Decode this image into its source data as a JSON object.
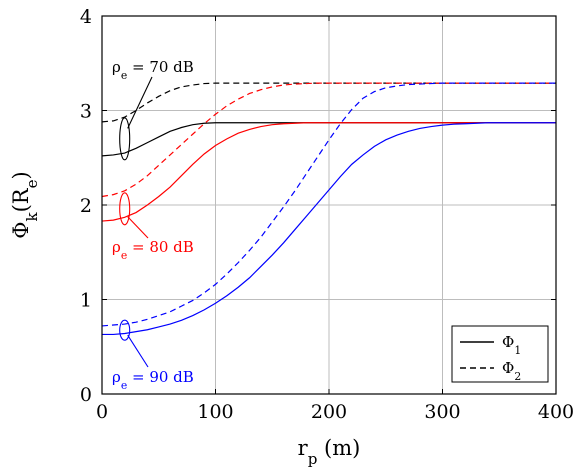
{
  "chart_data": {
    "type": "line",
    "xlabel": "r_p (m)",
    "ylabel": "Φ_k(R_e)",
    "xlim": [
      0,
      400
    ],
    "ylim": [
      0,
      4
    ],
    "xticks": [
      0,
      100,
      200,
      300,
      400
    ],
    "yticks": [
      0,
      1,
      2,
      3,
      4
    ],
    "grid": true,
    "legend_position": "bottom-right",
    "legend": [
      {
        "label": "Φ_1",
        "style": "solid"
      },
      {
        "label": "Φ_2",
        "style": "dashed"
      }
    ],
    "annotations": [
      {
        "text": "ρ_e = 70 dB",
        "color": "#000000"
      },
      {
        "text": "ρ_e = 80 dB",
        "color": "#ff0000"
      },
      {
        "text": "ρ_e = 90 dB",
        "color": "#0000ff"
      }
    ],
    "x": [
      0,
      10,
      20,
      30,
      40,
      50,
      60,
      70,
      80,
      90,
      100,
      110,
      120,
      130,
      140,
      150,
      160,
      170,
      180,
      190,
      200,
      210,
      220,
      230,
      240,
      250,
      260,
      270,
      280,
      290,
      300,
      310,
      320,
      330,
      340,
      350,
      360,
      370,
      380,
      390,
      400
    ],
    "series": [
      {
        "group": "70 dB",
        "kind": "Φ_1",
        "color": "#000000",
        "dash": false,
        "values": [
          2.52,
          2.53,
          2.55,
          2.6,
          2.66,
          2.72,
          2.78,
          2.82,
          2.85,
          2.865,
          2.87,
          2.87,
          2.87,
          2.87,
          2.87,
          2.87,
          2.87,
          2.87,
          2.87,
          2.87,
          2.87,
          2.87,
          2.87,
          2.87,
          2.87,
          2.87,
          2.87,
          2.87,
          2.87,
          2.87,
          2.87,
          2.87,
          2.87,
          2.87,
          2.87,
          2.87,
          2.87,
          2.87,
          2.87,
          2.87,
          2.87
        ]
      },
      {
        "group": "70 dB",
        "kind": "Φ_2",
        "color": "#000000",
        "dash": true,
        "values": [
          2.88,
          2.89,
          2.93,
          3.0,
          3.08,
          3.15,
          3.21,
          3.25,
          3.27,
          3.285,
          3.29,
          3.29,
          3.29,
          3.29,
          3.29,
          3.29,
          3.29,
          3.29,
          3.29,
          3.29,
          3.29,
          3.29,
          3.29,
          3.29,
          3.29,
          3.29,
          3.29,
          3.29,
          3.29,
          3.29,
          3.29,
          3.29,
          3.29,
          3.29,
          3.29,
          3.29,
          3.29,
          3.29,
          3.29,
          3.29,
          3.29
        ]
      },
      {
        "group": "80 dB",
        "kind": "Φ_1",
        "color": "#ff0000",
        "dash": false,
        "values": [
          1.83,
          1.84,
          1.87,
          1.92,
          2.0,
          2.09,
          2.19,
          2.31,
          2.43,
          2.54,
          2.63,
          2.7,
          2.76,
          2.8,
          2.83,
          2.85,
          2.86,
          2.865,
          2.87,
          2.87,
          2.87,
          2.87,
          2.87,
          2.87,
          2.87,
          2.87,
          2.87,
          2.87,
          2.87,
          2.87,
          2.87,
          2.87,
          2.87,
          2.87,
          2.87,
          2.87,
          2.87,
          2.87,
          2.87,
          2.87,
          2.87
        ]
      },
      {
        "group": "80 dB",
        "kind": "Φ_2",
        "color": "#ff0000",
        "dash": true,
        "values": [
          2.09,
          2.11,
          2.15,
          2.22,
          2.31,
          2.42,
          2.53,
          2.64,
          2.75,
          2.86,
          2.96,
          3.05,
          3.12,
          3.18,
          3.22,
          3.25,
          3.27,
          3.28,
          3.285,
          3.29,
          3.29,
          3.29,
          3.29,
          3.29,
          3.29,
          3.29,
          3.29,
          3.29,
          3.29,
          3.29,
          3.29,
          3.29,
          3.29,
          3.29,
          3.29,
          3.29,
          3.29,
          3.29,
          3.29,
          3.29,
          3.29
        ]
      },
      {
        "group": "90 dB",
        "kind": "Φ_1",
        "color": "#0000ff",
        "dash": false,
        "values": [
          0.63,
          0.63,
          0.64,
          0.66,
          0.68,
          0.71,
          0.74,
          0.78,
          0.83,
          0.89,
          0.96,
          1.04,
          1.13,
          1.23,
          1.35,
          1.47,
          1.6,
          1.74,
          1.88,
          2.02,
          2.16,
          2.3,
          2.43,
          2.53,
          2.62,
          2.69,
          2.74,
          2.78,
          2.81,
          2.83,
          2.845,
          2.855,
          2.86,
          2.865,
          2.87,
          2.87,
          2.87,
          2.87,
          2.87,
          2.87,
          2.87
        ]
      },
      {
        "group": "90 dB",
        "kind": "Φ_2",
        "color": "#0000ff",
        "dash": true,
        "values": [
          0.72,
          0.73,
          0.74,
          0.76,
          0.79,
          0.83,
          0.87,
          0.93,
          0.99,
          1.07,
          1.16,
          1.27,
          1.39,
          1.52,
          1.66,
          1.82,
          1.98,
          2.15,
          2.33,
          2.51,
          2.69,
          2.86,
          3.01,
          3.13,
          3.2,
          3.24,
          3.26,
          3.275,
          3.28,
          3.285,
          3.29,
          3.29,
          3.29,
          3.29,
          3.29,
          3.29,
          3.29,
          3.29,
          3.29,
          3.29,
          3.29
        ]
      }
    ]
  }
}
